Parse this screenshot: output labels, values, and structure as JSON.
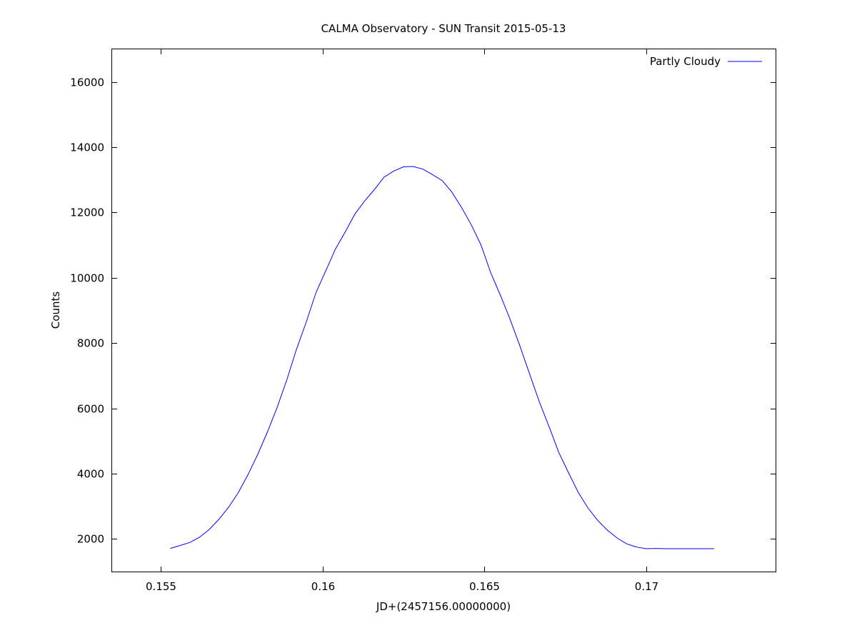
{
  "chart_data": {
    "type": "line",
    "title": "CALMA Observatory - SUN Transit 2015-05-13",
    "xlabel": "JD+(2457156.00000000)",
    "ylabel": "Counts",
    "xlim": [
      0.1535,
      0.174
    ],
    "ylim": [
      1000,
      17000
    ],
    "xticks": [
      0.155,
      0.16,
      0.165,
      0.17
    ],
    "xtick_labels": [
      "0.155",
      "0.16",
      "0.165",
      "0.17"
    ],
    "yticks": [
      2000,
      4000,
      6000,
      8000,
      10000,
      12000,
      14000,
      16000
    ],
    "ytick_labels": [
      "2000",
      "4000",
      "6000",
      "8000",
      "10000",
      "12000",
      "14000",
      "16000"
    ],
    "grid": false,
    "legend_position": "top-right",
    "series": [
      {
        "name": "Partly Cloudy",
        "color": "#0000ff",
        "x": [
          0.1553,
          0.1556,
          0.1559,
          0.1562,
          0.1565,
          0.1568,
          0.1571,
          0.1574,
          0.1577,
          0.158,
          0.1583,
          0.1586,
          0.1589,
          0.1592,
          0.1595,
          0.1598,
          0.1601,
          0.1604,
          0.1607,
          0.161,
          0.1613,
          0.1616,
          0.1619,
          0.1622,
          0.1625,
          0.1628,
          0.1631,
          0.1634,
          0.1637,
          0.164,
          0.1643,
          0.1646,
          0.1649,
          0.1652,
          0.1655,
          0.1658,
          0.1661,
          0.1664,
          0.1667,
          0.167,
          0.1673,
          0.1676,
          0.1679,
          0.1682,
          0.1685,
          0.1688,
          0.1691,
          0.1694,
          0.1697,
          0.17,
          0.1703,
          0.1706,
          0.1709,
          0.1712,
          0.1715,
          0.1718,
          0.1721
        ],
        "values": [
          1710,
          1800,
          1890,
          2050,
          2290,
          2600,
          2970,
          3420,
          3970,
          4590,
          5280,
          6030,
          6880,
          7820,
          8650,
          9550,
          10210,
          10880,
          11400,
          11950,
          12350,
          12700,
          13080,
          13270,
          13400,
          13410,
          13330,
          13160,
          12980,
          12620,
          12150,
          11620,
          11000,
          10150,
          9460,
          8720,
          7910,
          7050,
          6200,
          5440,
          4650,
          4030,
          3430,
          2950,
          2570,
          2270,
          2030,
          1850,
          1750,
          1700,
          1710,
          1700,
          1700,
          1700,
          1700,
          1700,
          1700
        ]
      }
    ]
  }
}
